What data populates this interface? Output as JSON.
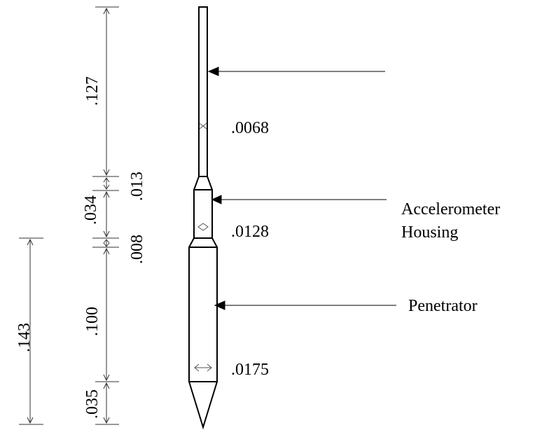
{
  "dimensions": {
    "stem_length": ".127",
    "neck_taper_length": ".013",
    "housing_length": ".034",
    "shoulder_length": ".008",
    "penetrator_body_length": ".100",
    "tip_length": ".035",
    "penetrator_total_length": ".143"
  },
  "diameters": {
    "stem": ".0068",
    "housing": ".0128",
    "penetrator": ".0175"
  },
  "labels": {
    "housing_line1": "Accelerometer",
    "housing_line2": "Housing",
    "penetrator": "Penetrator"
  },
  "colors": {
    "ink": "#000000",
    "dim_line": "#333333"
  }
}
